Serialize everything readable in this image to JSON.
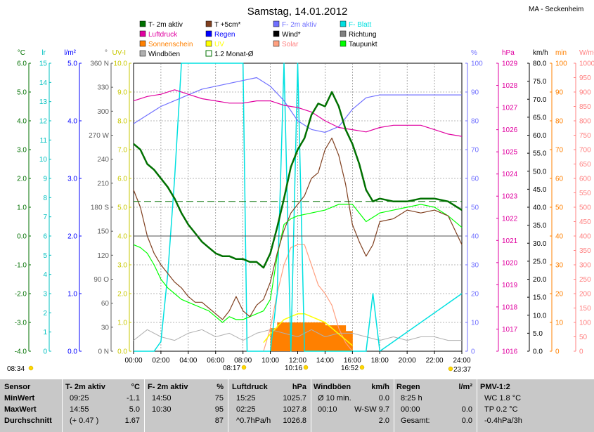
{
  "title": "Samstag, 14.01.2012",
  "station": "MA - Seckenheim",
  "colors": {
    "t2m": "#007000",
    "t5cm": "#804020",
    "fblatt": "#00e0e0",
    "ffeucht": "#7070ff",
    "luftdruck": "#e000a0",
    "regen": "#0000ff",
    "wind": "#000000",
    "richtung": "#808080",
    "sonnenschein": "#ff8000",
    "uv": "#ffff00",
    "solar": "#ffa080",
    "taupunkt": "#00ff00",
    "windboeen": "#b0b0b0",
    "monat": "#007000"
  },
  "legend": [
    {
      "key": "t2m",
      "label": "T- 2m aktiv"
    },
    {
      "key": "t5cm",
      "label": "T +5cm*"
    },
    {
      "key": "ffeucht",
      "label": "F- 2m aktiv"
    },
    {
      "key": "fblatt",
      "label": "F- Blatt"
    },
    {
      "key": "luftdruck",
      "label": "Luftdruck"
    },
    {
      "key": "regen",
      "label": "Regen"
    },
    {
      "key": "wind",
      "label": "Wind*"
    },
    {
      "key": "richtung",
      "label": "Richtung"
    },
    {
      "key": "sonnenschein",
      "label": "Sonnenschein"
    },
    {
      "key": "uv",
      "label": "UV"
    },
    {
      "key": "solar",
      "label": "Solar"
    },
    {
      "key": "taupunkt",
      "label": "Taupunkt"
    },
    {
      "key": "windboeen",
      "label": "Windböen"
    },
    {
      "key": "monat",
      "label": "1.2 Monat-Ø"
    }
  ],
  "axes": [
    {
      "unit": "°C",
      "ticks": [
        "6.0",
        "5.0",
        "4.0",
        "3.0",
        "2.0",
        "1.0",
        "0.0",
        "-1.0",
        "-2.0",
        "-3.0",
        "-4.0"
      ],
      "color": "#007000"
    },
    {
      "unit": "lr",
      "ticks": [
        "15",
        "14",
        "13",
        "12",
        "11",
        "10",
        "9",
        "8",
        "7",
        "6",
        "5",
        "4",
        "3",
        "2",
        "1",
        "0"
      ],
      "color": "#00c0c0"
    },
    {
      "unit": "l/m²",
      "ticks": [
        "5.0",
        "4.0",
        "3.0",
        "2.0",
        "1.0",
        "0.0"
      ],
      "color": "#0000ff"
    },
    {
      "unit": "°",
      "ticks": [
        "360 N",
        "330",
        "300",
        "270 W",
        "240",
        "210",
        "180 S",
        "150",
        "120",
        "90 O",
        "60",
        "30",
        "0 N"
      ],
      "color": "#606060"
    },
    {
      "unit": "UV-I",
      "ticks": [
        "10.0",
        "9.0",
        "8.0",
        "7.0",
        "6.0",
        "5.0",
        "4.0",
        "3.0",
        "2.0",
        "1.0",
        "0.0"
      ],
      "color": "#c8c800"
    },
    {
      "unit": "%",
      "ticks": [
        "100",
        "90",
        "80",
        "70",
        "60",
        "50",
        "40",
        "30",
        "20",
        "10",
        "0"
      ],
      "color": "#7070ff"
    },
    {
      "unit": "hPa",
      "ticks": [
        "1029",
        "1028",
        "1027",
        "1026",
        "1025",
        "1024",
        "1023",
        "1022",
        "1021",
        "1020",
        "1019",
        "1018",
        "1017",
        "1016"
      ],
      "color": "#e000a0"
    },
    {
      "unit": "km/h",
      "ticks": [
        "80.0",
        "75.0",
        "70.0",
        "65.0",
        "60.0",
        "55.0",
        "50.0",
        "45.0",
        "40.0",
        "35.0",
        "30.0",
        "25.0",
        "20.0",
        "15.0",
        "10.0",
        "5.0",
        "0.0"
      ],
      "color": "#000000"
    },
    {
      "unit": "min",
      "ticks": [
        "100",
        "90",
        "80",
        "70",
        "60",
        "50",
        "40",
        "30",
        "20",
        "10",
        "0"
      ],
      "color": "#ff8000"
    },
    {
      "unit": "W/m²",
      "ticks": [
        "1000",
        "950",
        "900",
        "850",
        "800",
        "750",
        "700",
        "650",
        "600",
        "550",
        "500",
        "450",
        "400",
        "350",
        "300",
        "250",
        "200",
        "150",
        "100",
        "50",
        "0"
      ],
      "color": "#ff8080"
    }
  ],
  "x_ticks": [
    "00:00",
    "02:00",
    "04:00",
    "06:00",
    "08:00",
    "10:00",
    "12:00",
    "14:00",
    "16:00",
    "18:00",
    "20:00",
    "22:00",
    "24:00"
  ],
  "sun_events": [
    {
      "label": "08:34",
      "x_h": -3
    },
    {
      "label": "08:17",
      "x_h": 7.6
    },
    {
      "label": "10:16",
      "x_h": 10.3
    },
    {
      "label": "16:52",
      "x_h": 16.4
    },
    {
      "label": "23:37",
      "x_h": 24.2
    }
  ],
  "chart_data": {
    "type": "line",
    "title": "Samstag, 14.01.2012",
    "x_unit": "hours",
    "xlim": [
      0,
      24
    ],
    "series": [
      {
        "name": "T- 2m aktiv",
        "unit": "°C",
        "ylim": [
          -4,
          6
        ],
        "x": [
          0,
          0.5,
          1,
          1.5,
          2,
          2.5,
          3,
          3.5,
          4,
          4.5,
          5,
          5.5,
          6,
          6.5,
          7,
          7.5,
          8,
          8.5,
          9,
          9.5,
          10,
          10.5,
          11,
          11.5,
          12,
          12.5,
          13,
          13.5,
          14,
          14.5,
          15,
          15.5,
          16,
          16.5,
          17,
          17.5,
          18,
          19,
          20,
          21,
          22,
          23,
          24
        ],
        "y": [
          3.2,
          3.0,
          2.5,
          2.3,
          2.0,
          1.7,
          1.3,
          0.8,
          0.4,
          0.1,
          -0.2,
          -0.4,
          -0.6,
          -0.7,
          -0.7,
          -0.8,
          -0.8,
          -0.9,
          -0.9,
          -1.1,
          -0.6,
          0.3,
          1.3,
          2.4,
          3.0,
          3.4,
          4.2,
          4.6,
          4.5,
          5.0,
          4.5,
          3.7,
          3.2,
          2.5,
          1.6,
          1.2,
          1.3,
          1.2,
          1.2,
          1.3,
          1.3,
          1.2,
          0.9
        ]
      },
      {
        "name": "T +5cm*",
        "unit": "°C",
        "ylim": [
          -4,
          6
        ],
        "x": [
          0,
          0.5,
          1,
          1.5,
          2,
          2.5,
          3,
          3.5,
          4,
          4.5,
          5,
          5.5,
          6,
          6.5,
          7,
          7.5,
          8,
          8.5,
          9,
          9.5,
          10,
          10.5,
          11,
          11.5,
          12,
          12.5,
          13,
          13.5,
          14,
          14.5,
          15,
          15.5,
          16,
          16.5,
          17,
          17.5,
          18,
          19,
          20,
          21,
          22,
          23,
          24
        ],
        "y": [
          1.6,
          1.0,
          0.0,
          -0.6,
          -1.0,
          -1.3,
          -1.6,
          -1.8,
          -2.1,
          -2.3,
          -2.3,
          -2.5,
          -2.7,
          -2.9,
          -2.6,
          -2.1,
          -2.6,
          -2.8,
          -2.4,
          -2.2,
          -1.6,
          -0.6,
          0.2,
          0.8,
          1.1,
          1.4,
          2.0,
          2.2,
          3.0,
          3.4,
          2.8,
          1.8,
          0.4,
          -0.2,
          -0.7,
          -0.3,
          0.5,
          0.6,
          0.9,
          0.8,
          0.9,
          0.7,
          -0.3
        ]
      },
      {
        "name": "Taupunkt",
        "unit": "°C",
        "ylim": [
          -4,
          6
        ],
        "x": [
          0,
          0.5,
          1,
          1.5,
          2,
          2.5,
          3,
          3.5,
          4,
          4.5,
          5,
          5.5,
          6,
          6.5,
          7,
          7.5,
          8,
          8.5,
          9,
          9.5,
          10,
          10.5,
          11,
          11.5,
          12,
          13,
          14,
          15,
          16,
          17,
          18,
          19,
          20,
          21,
          22,
          23,
          24
        ],
        "y": [
          -0.3,
          -0.4,
          -0.6,
          -1.0,
          -1.5,
          -1.8,
          -2.0,
          -2.2,
          -2.3,
          -2.4,
          -2.5,
          -2.6,
          -2.8,
          -3.0,
          -2.8,
          -2.9,
          -2.9,
          -2.8,
          -2.7,
          -2.6,
          -2.2,
          -0.7,
          0.4,
          0.6,
          0.7,
          0.8,
          0.9,
          1.1,
          1.1,
          0.5,
          0.8,
          0.9,
          1.0,
          1.1,
          1.0,
          0.7,
          0.3
        ]
      },
      {
        "name": "Luftdruck",
        "unit": "hPa",
        "ylim": [
          1016,
          1029
        ],
        "x": [
          0,
          1,
          2,
          3,
          4,
          5,
          6,
          7,
          8,
          9,
          10,
          11,
          12,
          13,
          14,
          15,
          16,
          17,
          18,
          19,
          20,
          21,
          22,
          23,
          24
        ],
        "y": [
          1027.3,
          1027.5,
          1027.6,
          1027.8,
          1027.6,
          1027.4,
          1027.3,
          1027.2,
          1027.2,
          1027.3,
          1027.3,
          1027.1,
          1027.0,
          1026.8,
          1026.4,
          1026.1,
          1026.0,
          1025.9,
          1026.1,
          1026.2,
          1026.2,
          1026.2,
          1026.0,
          1025.8,
          1025.7
        ]
      },
      {
        "name": "F- 2m aktiv",
        "unit": "%",
        "ylim": [
          0,
          100
        ],
        "x": [
          0,
          1,
          2,
          3,
          4,
          5,
          6,
          7,
          8,
          9,
          10,
          11,
          12,
          13,
          14,
          15,
          16,
          17,
          18,
          19,
          20,
          21,
          22,
          23,
          24
        ],
        "y": [
          79,
          82,
          85,
          87,
          89,
          91,
          92,
          93,
          94,
          95,
          92,
          87,
          80,
          77,
          76,
          78,
          84,
          88,
          89,
          89,
          89,
          89,
          89,
          89,
          89
        ]
      },
      {
        "name": "Windböen",
        "unit": "km/h",
        "ylim": [
          0,
          80
        ],
        "x": [
          0,
          1,
          2,
          3,
          4,
          5,
          6,
          7,
          8,
          9,
          10,
          11,
          12,
          13,
          14,
          15,
          16,
          17,
          18,
          19,
          20,
          21,
          22,
          23,
          24
        ],
        "y": [
          3,
          6,
          4,
          3,
          5,
          6,
          4,
          5,
          3,
          5,
          6,
          5,
          4,
          6,
          4,
          5,
          5,
          4,
          3,
          4,
          3,
          4,
          4,
          3,
          3
        ]
      },
      {
        "name": "Solar",
        "unit": "W/m²",
        "ylim": [
          0,
          1000
        ],
        "x": [
          9.5,
          10,
          10.5,
          11,
          11.5,
          12,
          12.5,
          13,
          13.5,
          14,
          14.5,
          15,
          15.5,
          16
        ],
        "y": [
          0,
          80,
          200,
          300,
          360,
          370,
          370,
          300,
          230,
          200,
          160,
          80,
          30,
          0
        ]
      },
      {
        "name": "UV",
        "unit": "UV-I",
        "ylim": [
          0,
          10
        ],
        "x": [
          9.5,
          10,
          11,
          12,
          12.5,
          13,
          14,
          15,
          16
        ],
        "y": [
          0.3,
          0.6,
          1.1,
          1.3,
          1.3,
          1.2,
          1.0,
          0.6,
          0.2
        ]
      },
      {
        "name": "Sonnenschein",
        "unit": "min",
        "ylim": [
          0,
          100
        ],
        "x": [
          10,
          10.5,
          11,
          11.5,
          12,
          12.5,
          13,
          13.5,
          14,
          14.5,
          15,
          15.5
        ],
        "y": [
          8,
          10,
          10,
          10,
          10,
          10,
          10,
          10,
          9,
          9,
          9,
          7
        ]
      },
      {
        "name": "F- Blatt",
        "unit": "lr",
        "ylim": [
          0,
          15
        ],
        "x": [
          0,
          1,
          1.5,
          2,
          2.5,
          3,
          3.5,
          4.5,
          8,
          8.3,
          8.6,
          9,
          10,
          10.5,
          11,
          11.5,
          12,
          12.5,
          16,
          17,
          17.5,
          18,
          24
        ],
        "y": [
          0,
          0,
          0,
          0.5,
          4,
          9,
          15,
          15,
          15,
          0,
          0,
          0,
          0,
          3,
          15,
          0,
          15,
          0,
          0,
          0,
          3,
          0,
          3
        ]
      }
    ],
    "reference_lines": [
      {
        "name": "1.2 Monat-Ø",
        "unit": "°C",
        "y": 1.2
      }
    ]
  },
  "table": {
    "headers": [
      {
        "label": "Sensor",
        "unit": ""
      },
      {
        "label": "T- 2m aktiv",
        "unit": "°C"
      },
      {
        "label": "F- 2m aktiv",
        "unit": "%"
      },
      {
        "label": "Luftdruck",
        "unit": "hPa"
      },
      {
        "label": "Windböen",
        "unit": "km/h"
      },
      {
        "label": "Regen",
        "unit": "l/m²"
      },
      {
        "label": "PMV-1:2",
        "unit": ""
      }
    ],
    "rows": [
      {
        "label": "MinWert",
        "cells": [
          [
            "09:25",
            "-1.1"
          ],
          [
            "14:50",
            "75"
          ],
          [
            "15:25",
            "1025.7"
          ],
          [
            "Ø 10 min.",
            "0.0"
          ],
          [
            "8:25 h",
            ""
          ],
          [
            "WC 1.8 °C",
            ""
          ]
        ]
      },
      {
        "label": "MaxWert",
        "cells": [
          [
            "14:55",
            "5.0"
          ],
          [
            "10:30",
            "95"
          ],
          [
            "02:25",
            "1027.8"
          ],
          [
            "00:10",
            "W-SW 9.7"
          ],
          [
            "00:00",
            "0.0"
          ],
          [
            "TP 0.2 °C",
            ""
          ]
        ]
      },
      {
        "label": "Durchschnitt",
        "cells": [
          [
            "(+ 0.47 )",
            "1.67"
          ],
          [
            "",
            "87"
          ],
          [
            "^0.7hPa/h",
            "1026.8"
          ],
          [
            "",
            "2.0"
          ],
          [
            "Gesamt:",
            "0.0"
          ],
          [
            "-0.4hPa/3h",
            ""
          ]
        ]
      }
    ]
  }
}
